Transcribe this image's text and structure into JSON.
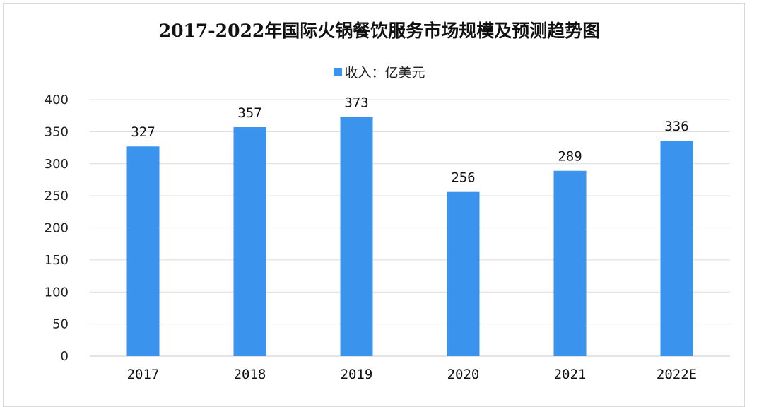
{
  "chart_data": {
    "type": "bar",
    "title": "2017-2022年国际火锅餐饮服务市场规模及预测趋势图",
    "categories": [
      "2017",
      "2018",
      "2019",
      "2020",
      "2021",
      "2022E"
    ],
    "series": [
      {
        "name": "收入：亿美元",
        "values": [
          327,
          357,
          373,
          256,
          289,
          336
        ]
      }
    ],
    "xlabel": "",
    "ylabel": "",
    "ylim": [
      0,
      400
    ],
    "yticks": [
      0,
      50,
      100,
      150,
      200,
      250,
      300,
      350,
      400
    ],
    "grid": true,
    "legend_position": "top",
    "bar_color": "#3a93ec",
    "data_labels": true
  }
}
